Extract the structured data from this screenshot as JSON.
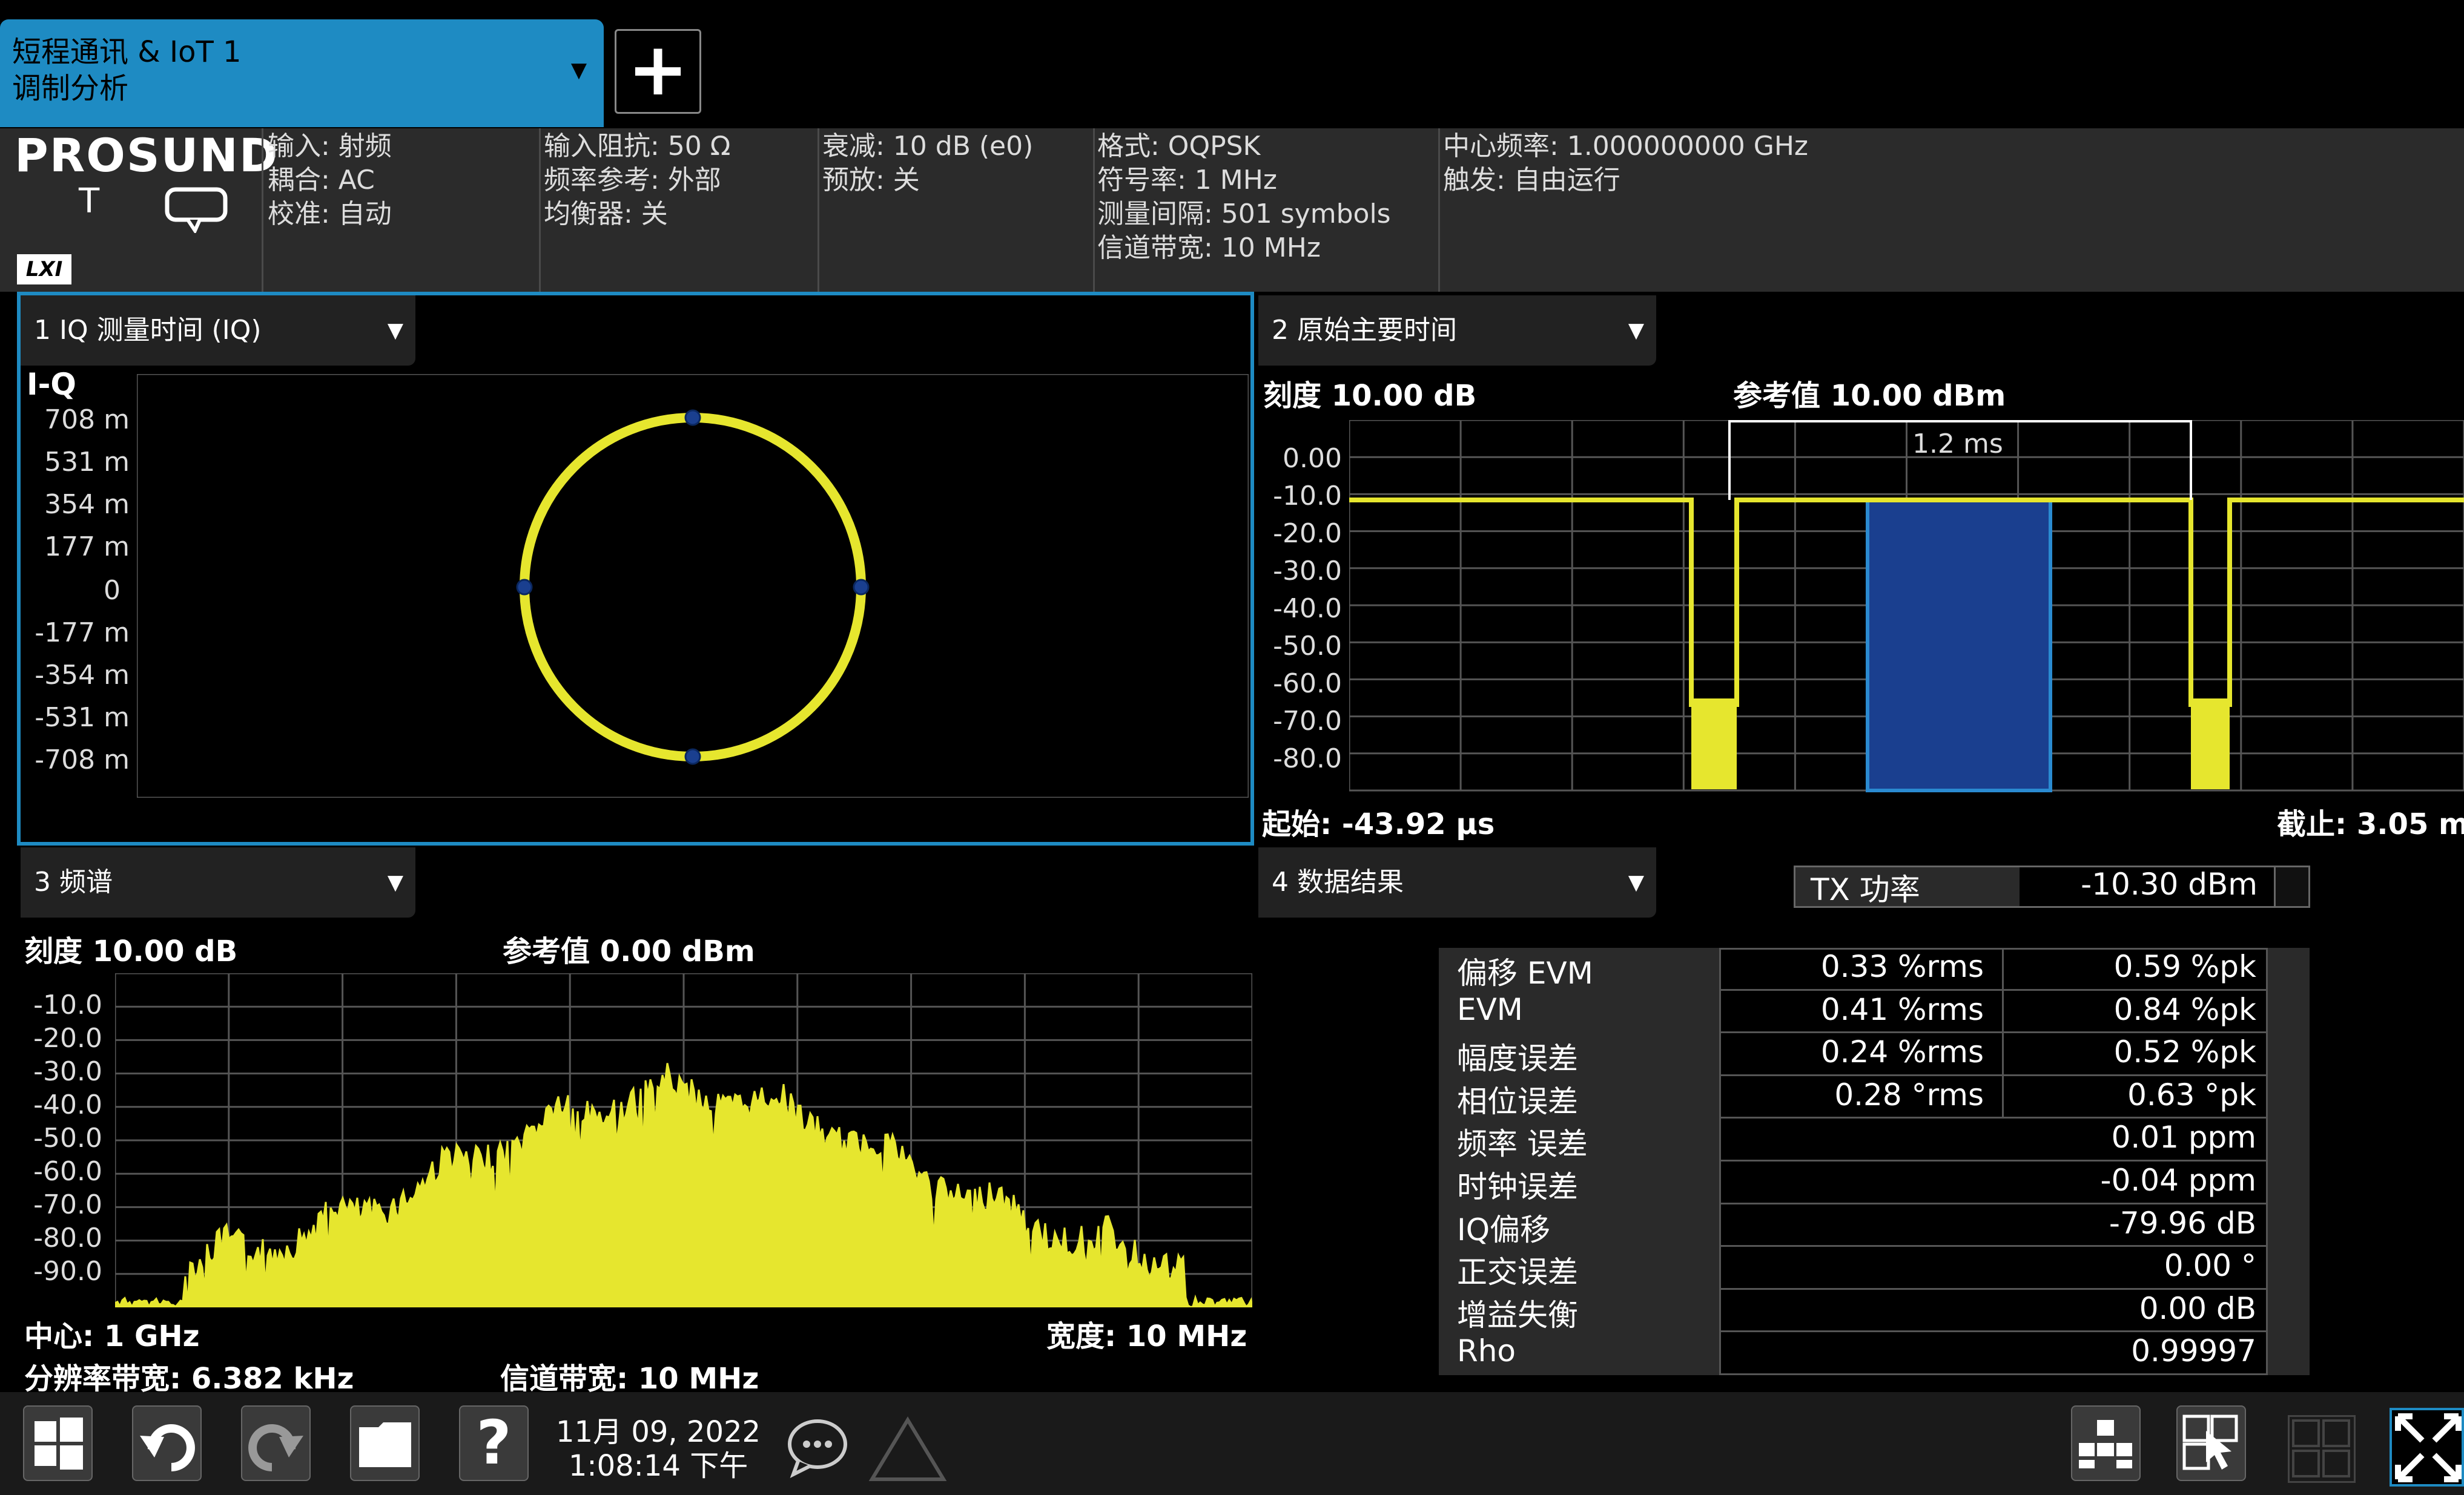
{
  "tab": {
    "line1": "短程通讯 & IoT 1",
    "line2": "调制分析",
    "add": "+"
  },
  "brand": {
    "name": "PROSUND",
    "sub": "T",
    "lxi": "LXI"
  },
  "settings": {
    "col1": [
      "输入: 射频",
      "耦合: AC",
      "校准: 自动"
    ],
    "col2": [
      "输入阻抗: 50 Ω",
      "频率参考: 外部",
      "均衡器: 关"
    ],
    "col3": [
      "衰减: 10 dB (e0)",
      "预放: 关"
    ],
    "col4": [
      "格式: OQPSK",
      "符号率: 1 MHz",
      "测量间隔: 501 symbols",
      "信道带宽: 10 MHz"
    ],
    "col5": [
      "中心频率: 1.000000000 GHz",
      "触发: 自由运行"
    ]
  },
  "panel1": {
    "title": "1 IQ 测量时间 (IQ)",
    "axis_label": "I-Q",
    "yticks": [
      "708 m",
      "531 m",
      "354 m",
      "177 m",
      "0",
      "-177 m",
      "-354 m",
      "-531 m",
      "-708 m"
    ]
  },
  "panel2": {
    "title": "2 原始主要时间",
    "scale": "刻度 10.00 dB",
    "ref": "参考值 10.00 dBm",
    "marker": "1.2 ms",
    "yticks": [
      "0.00",
      "-10.0",
      "-20.0",
      "-30.0",
      "-40.0",
      "-50.0",
      "-60.0",
      "-70.0",
      "-80.0"
    ],
    "start": "起始: -43.92 μs",
    "stop": "截止: 3.05 m"
  },
  "panel3": {
    "title": "3 频谱",
    "scale": "刻度 10.00 dB",
    "ref": "参考值 0.00 dBm",
    "yticks": [
      "-10.0",
      "-20.0",
      "-30.0",
      "-40.0",
      "-50.0",
      "-60.0",
      "-70.0",
      "-80.0",
      "-90.0"
    ],
    "center": "中心: 1 GHz",
    "span": "宽度: 10 MHz",
    "rbw": "分辨率带宽: 6.382 kHz",
    "chbw": "信道带宽: 10 MHz"
  },
  "panel4": {
    "title": "4 数据结果",
    "tx_label": "TX 功率",
    "tx_value": "-10.30 dBm",
    "rows": [
      {
        "name": "偏移 EVM",
        "rms": "0.33 %rms",
        "pk": "0.59 %pk"
      },
      {
        "name": "EVM",
        "rms": "0.41 %rms",
        "pk": "0.84 %pk"
      },
      {
        "name": "幅度误差",
        "rms": "0.24 %rms",
        "pk": "0.52 %pk"
      },
      {
        "name": "相位误差",
        "rms": "0.28 °rms",
        "pk": "0.63 °pk"
      },
      {
        "name": "频率 误差",
        "rms": "",
        "pk": "0.01 ppm"
      },
      {
        "name": "时钟误差",
        "rms": "",
        "pk": "-0.04 ppm"
      },
      {
        "name": "IQ偏移",
        "rms": "",
        "pk": "-79.96 dB"
      },
      {
        "name": "正交误差",
        "rms": "",
        "pk": "0.00 °"
      },
      {
        "name": "增益失衡",
        "rms": "",
        "pk": "0.00 dB"
      },
      {
        "name": "Rho",
        "rms": "",
        "pk": "0.99997"
      }
    ]
  },
  "taskbar": {
    "date": "11月 09, 2022",
    "time": "1:08:14 下午",
    "help": "?"
  },
  "colors": {
    "accent": "#1e8bc3",
    "trace": "#e6e62e",
    "highlight": "#1a3f8f"
  }
}
